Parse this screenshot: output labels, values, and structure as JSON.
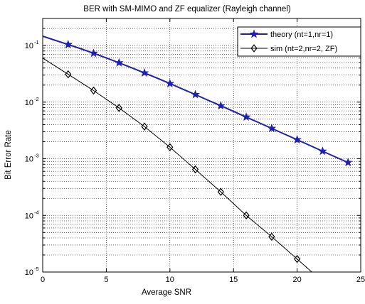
{
  "chart_data": {
    "type": "line",
    "title": "BER with SM-MIMO and ZF equalizer (Rayleigh channel)",
    "xlabel": "Average SNR",
    "ylabel": "Bit Error Rate",
    "xlim": [
      0,
      25
    ],
    "ylim": [
      1e-05,
      0.3
    ],
    "y_scale": "log",
    "x_ticks": [
      0,
      5,
      10,
      15,
      20,
      25
    ],
    "x_tick_labels": [
      "0",
      "5",
      "10",
      "15",
      "20",
      "25"
    ],
    "y_ticks": [
      1e-05,
      0.0001,
      0.001,
      0.01,
      0.1
    ],
    "y_tick_labels": [
      {
        "base": "10",
        "exp": "-5"
      },
      {
        "base": "10",
        "exp": "-4"
      },
      {
        "base": "10",
        "exp": "-3"
      },
      {
        "base": "10",
        "exp": "-2"
      },
      {
        "base": "10",
        "exp": "-1"
      }
    ],
    "grid": true,
    "legend_position": "top-right",
    "series": [
      {
        "name": "theory (nt=1,nr=1)",
        "color": "#1f1fb0",
        "marker": "star",
        "line_width": 2,
        "x": [
          0,
          1,
          2,
          3,
          4,
          5,
          6,
          7,
          8,
          9,
          10,
          11,
          12,
          13,
          14,
          15,
          16,
          17,
          18,
          19,
          20,
          21,
          22,
          23,
          24
        ],
        "y": [
          0.146,
          0.123,
          0.104,
          0.0876,
          0.0729,
          0.0603,
          0.0495,
          0.0404,
          0.0328,
          0.0265,
          0.0213,
          0.017,
          0.0136,
          0.0108,
          0.00864,
          0.00686,
          0.00545,
          0.00433,
          0.00344,
          0.00273,
          0.00217,
          0.00172,
          0.00136,
          0.00108,
          0.00086
        ],
        "marker_x": [
          2,
          4,
          6,
          8,
          10,
          12,
          14,
          16,
          18,
          20,
          22,
          24
        ]
      },
      {
        "name": "sim (nt=2,nr=2, ZF)",
        "color": "#000000",
        "marker": "diamond",
        "line_width": 1,
        "x": [
          0,
          2,
          4,
          6,
          8,
          10,
          12,
          14,
          16,
          18,
          20,
          22
        ],
        "y": [
          0.06,
          0.031,
          0.016,
          0.0079,
          0.0037,
          0.0016,
          0.00065,
          0.00026,
          0.0001,
          4.2e-05,
          1.7e-05,
          6.8e-06
        ],
        "marker_x": [
          2,
          4,
          6,
          8,
          10,
          12,
          14,
          16,
          18,
          20
        ]
      }
    ]
  }
}
